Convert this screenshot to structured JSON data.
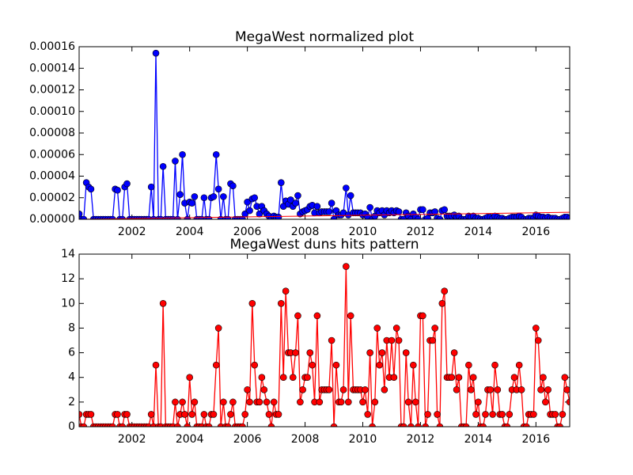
{
  "chart_data": [
    {
      "type": "line",
      "title": "MegaWest normalized plot",
      "color": "#0000ff",
      "x": [
        2000.17,
        2000.25,
        2000.33,
        2000.42,
        2000.5,
        2000.58,
        2000.67,
        2000.75,
        2000.83,
        2000.92,
        2001,
        2001.08,
        2001.17,
        2001.25,
        2001.33,
        2001.42,
        2001.5,
        2001.58,
        2001.67,
        2001.75,
        2001.83,
        2001.92,
        2002,
        2002.08,
        2002.17,
        2002.25,
        2002.33,
        2002.42,
        2002.5,
        2002.58,
        2002.67,
        2002.75,
        2002.83,
        2002.92,
        2003,
        2003.08,
        2003.17,
        2003.25,
        2003.33,
        2003.42,
        2003.5,
        2003.58,
        2003.67,
        2003.75,
        2003.83,
        2003.92,
        2004,
        2004.08,
        2004.17,
        2004.25,
        2004.33,
        2004.42,
        2004.5,
        2004.58,
        2004.67,
        2004.75,
        2004.83,
        2004.92,
        2005,
        2005.08,
        2005.17,
        2005.25,
        2005.33,
        2005.42,
        2005.5,
        2005.58,
        2005.67,
        2005.75,
        2005.83,
        2005.92,
        2006,
        2006.08,
        2006.17,
        2006.25,
        2006.33,
        2006.42,
        2006.5,
        2006.58,
        2006.67,
        2006.75,
        2006.83,
        2006.92,
        2007,
        2007.08,
        2007.17,
        2007.25,
        2007.33,
        2007.42,
        2007.5,
        2007.58,
        2007.67,
        2007.75,
        2007.83,
        2007.92,
        2008,
        2008.08,
        2008.17,
        2008.25,
        2008.33,
        2008.42,
        2008.5,
        2008.58,
        2008.67,
        2008.75,
        2008.83,
        2008.92,
        2009,
        2009.08,
        2009.17,
        2009.25,
        2009.33,
        2009.42,
        2009.5,
        2009.58,
        2009.67,
        2009.75,
        2009.83,
        2009.92,
        2010,
        2010.08,
        2010.17,
        2010.25,
        2010.33,
        2010.42,
        2010.5,
        2010.58,
        2010.67,
        2010.75,
        2010.83,
        2010.92,
        2011,
        2011.08,
        2011.17,
        2011.25,
        2011.33,
        2011.42,
        2011.5,
        2011.58,
        2011.67,
        2011.75,
        2011.83,
        2011.92,
        2012,
        2012.08,
        2012.17,
        2012.25,
        2012.33,
        2012.42,
        2012.5,
        2012.58,
        2012.67,
        2012.75,
        2012.83,
        2012.92,
        2013,
        2013.08,
        2013.17,
        2013.25,
        2013.33,
        2013.42,
        2013.5,
        2013.58,
        2013.67,
        2013.75,
        2013.83,
        2013.92,
        2014,
        2014.08,
        2014.17,
        2014.25,
        2014.33,
        2014.42,
        2014.5,
        2014.58,
        2014.67,
        2014.75,
        2014.83,
        2014.92,
        2015,
        2015.08,
        2015.17,
        2015.25,
        2015.33,
        2015.42,
        2015.5,
        2015.58,
        2015.67,
        2015.75,
        2015.83,
        2015.92,
        2016,
        2016.08,
        2016.17,
        2016.25,
        2016.33,
        2016.42,
        2016.5,
        2016.58,
        2016.67,
        2016.75,
        2016.83,
        2016.92,
        2017,
        2017.08,
        2017.17
      ],
      "values": [
        5e-06,
        0,
        0,
        3.4e-05,
        3e-05,
        2.8e-05,
        0,
        0,
        0,
        0,
        0,
        0,
        0,
        0,
        0,
        2.8e-05,
        2.7e-05,
        0,
        0,
        3e-05,
        3.3e-05,
        0,
        0,
        0,
        0,
        0,
        0,
        0,
        0,
        0,
        3e-05,
        0,
        0.000154,
        0,
        0,
        4.9e-05,
        0,
        0,
        0,
        0,
        5.4e-05,
        0,
        2.3e-05,
        6e-05,
        1.5e-05,
        0,
        1.6e-05,
        1.5e-05,
        2.1e-05,
        0,
        0,
        0,
        2e-05,
        0,
        0,
        2e-05,
        2.1e-05,
        6e-05,
        2.8e-05,
        0,
        2.1e-05,
        0,
        0,
        3.3e-05,
        3.1e-05,
        0,
        0,
        0,
        0,
        5e-06,
        1.6e-05,
        8e-06,
        1.9e-05,
        2e-05,
        1.2e-05,
        5e-06,
        1.2e-05,
        8e-06,
        5e-06,
        3e-06,
        0,
        3e-06,
        2e-06,
        2e-06,
        3.4e-05,
        1.2e-05,
        1.7e-05,
        1.4e-05,
        1.8e-05,
        1.2e-05,
        1.5e-05,
        2.2e-05,
        5e-06,
        7e-06,
        8e-06,
        9e-06,
        1.2e-05,
        1.3e-05,
        6e-06,
        1.2e-05,
        6e-06,
        7e-06,
        7e-06,
        7e-06,
        7e-06,
        1.5e-05,
        0,
        8e-06,
        4e-06,
        4e-06,
        6e-06,
        2.9e-05,
        4e-06,
        2.2e-05,
        6e-06,
        6e-06,
        6e-06,
        6e-06,
        4e-06,
        5e-06,
        2e-06,
        1.1e-05,
        0,
        3e-06,
        8e-06,
        6e-06,
        8e-06,
        4e-06,
        8e-06,
        6e-06,
        8e-06,
        6e-06,
        8e-06,
        7e-06,
        0,
        0,
        6e-06,
        3e-06,
        0,
        5e-06,
        2e-06,
        0,
        9e-06,
        9e-06,
        0,
        1e-06,
        6e-06,
        6e-06,
        7e-06,
        1e-06,
        0,
        8e-06,
        9e-06,
        3e-06,
        3e-06,
        3e-06,
        4e-06,
        2e-06,
        3e-06,
        0,
        0,
        0,
        3e-06,
        2e-06,
        3e-06,
        1e-06,
        1e-06,
        0,
        0,
        1e-06,
        2e-06,
        2e-06,
        1e-06,
        3e-06,
        2e-06,
        1e-06,
        1e-06,
        0,
        0,
        1e-06,
        2e-06,
        2e-06,
        2e-06,
        3e-06,
        2e-06,
        0,
        0,
        1e-06,
        1e-06,
        1e-06,
        4e-06,
        3e-06,
        2e-06,
        2e-06,
        1e-06,
        2e-06,
        1e-06,
        1e-06,
        1e-06,
        0,
        0,
        1e-06,
        2e-06,
        2e-06,
        1e-06
      ],
      "trend": {
        "x": [
          2000.17,
          2017.17
        ],
        "values": [
          0,
          6.5e-06
        ],
        "color": "#ff0000"
      },
      "xlim": [
        2000.17,
        2017.17
      ],
      "xticks": [
        2002,
        2004,
        2006,
        2008,
        2010,
        2012,
        2014,
        2016
      ],
      "ylim": [
        0,
        0.00016
      ],
      "yticks": [
        {
          "value": 0,
          "label": "0.00000"
        },
        {
          "value": 2e-05,
          "label": "0.00002"
        },
        {
          "value": 4e-05,
          "label": "0.00004"
        },
        {
          "value": 6e-05,
          "label": "0.00006"
        },
        {
          "value": 8e-05,
          "label": "0.00008"
        },
        {
          "value": 0.0001,
          "label": "0.00010"
        },
        {
          "value": 0.00012,
          "label": "0.00012"
        },
        {
          "value": 0.00014,
          "label": "0.00014"
        },
        {
          "value": 0.00016,
          "label": "0.00016"
        }
      ]
    },
    {
      "type": "line",
      "title": "MegaWest duns hits pattern",
      "color": "#ff0000",
      "x": [
        2000.17,
        2000.25,
        2000.33,
        2000.42,
        2000.5,
        2000.58,
        2000.67,
        2000.75,
        2000.83,
        2000.92,
        2001,
        2001.08,
        2001.17,
        2001.25,
        2001.33,
        2001.42,
        2001.5,
        2001.58,
        2001.67,
        2001.75,
        2001.83,
        2001.92,
        2002,
        2002.08,
        2002.17,
        2002.25,
        2002.33,
        2002.42,
        2002.5,
        2002.58,
        2002.67,
        2002.75,
        2002.83,
        2002.92,
        2003,
        2003.08,
        2003.17,
        2003.25,
        2003.33,
        2003.42,
        2003.5,
        2003.58,
        2003.67,
        2003.75,
        2003.83,
        2003.92,
        2004,
        2004.08,
        2004.17,
        2004.25,
        2004.33,
        2004.42,
        2004.5,
        2004.58,
        2004.67,
        2004.75,
        2004.83,
        2004.92,
        2005,
        2005.08,
        2005.17,
        2005.25,
        2005.33,
        2005.42,
        2005.5,
        2005.58,
        2005.67,
        2005.75,
        2005.83,
        2005.92,
        2006,
        2006.08,
        2006.17,
        2006.25,
        2006.33,
        2006.42,
        2006.5,
        2006.58,
        2006.67,
        2006.75,
        2006.83,
        2006.92,
        2007,
        2007.08,
        2007.17,
        2007.25,
        2007.33,
        2007.42,
        2007.5,
        2007.58,
        2007.67,
        2007.75,
        2007.83,
        2007.92,
        2008,
        2008.08,
        2008.17,
        2008.25,
        2008.33,
        2008.42,
        2008.5,
        2008.58,
        2008.67,
        2008.75,
        2008.83,
        2008.92,
        2009,
        2009.08,
        2009.17,
        2009.25,
        2009.33,
        2009.42,
        2009.5,
        2009.58,
        2009.67,
        2009.75,
        2009.83,
        2009.92,
        2010,
        2010.08,
        2010.17,
        2010.25,
        2010.33,
        2010.42,
        2010.5,
        2010.58,
        2010.67,
        2010.75,
        2010.83,
        2010.92,
        2011,
        2011.08,
        2011.17,
        2011.25,
        2011.33,
        2011.42,
        2011.5,
        2011.58,
        2011.67,
        2011.75,
        2011.83,
        2011.92,
        2012,
        2012.08,
        2012.17,
        2012.25,
        2012.33,
        2012.42,
        2012.5,
        2012.58,
        2012.67,
        2012.75,
        2012.83,
        2012.92,
        2013,
        2013.08,
        2013.17,
        2013.25,
        2013.33,
        2013.42,
        2013.5,
        2013.58,
        2013.67,
        2013.75,
        2013.83,
        2013.92,
        2014,
        2014.08,
        2014.17,
        2014.25,
        2014.33,
        2014.42,
        2014.5,
        2014.58,
        2014.67,
        2014.75,
        2014.83,
        2014.92,
        2015,
        2015.08,
        2015.17,
        2015.25,
        2015.33,
        2015.42,
        2015.5,
        2015.58,
        2015.67,
        2015.75,
        2015.83,
        2015.92,
        2016,
        2016.08,
        2016.17,
        2016.25,
        2016.33,
        2016.42,
        2016.5,
        2016.58,
        2016.67,
        2016.75,
        2016.83,
        2016.92,
        2017,
        2017.08,
        2017.17
      ],
      "values": [
        1,
        0,
        0,
        1,
        1,
        1,
        0,
        0,
        0,
        0,
        0,
        0,
        0,
        0,
        0,
        1,
        1,
        0,
        0,
        1,
        1,
        0,
        0,
        0,
        0,
        0,
        0,
        0,
        0,
        0,
        1,
        0,
        5,
        0,
        0,
        10,
        0,
        0,
        0,
        0,
        2,
        0,
        1,
        2,
        1,
        0,
        4,
        1,
        2,
        0,
        0,
        0,
        1,
        0,
        0,
        1,
        1,
        5,
        8,
        0,
        2,
        0,
        0,
        1,
        2,
        0,
        0,
        0,
        0,
        1,
        3,
        2,
        10,
        5,
        2,
        2,
        4,
        3,
        2,
        1,
        0,
        2,
        1,
        1,
        10,
        4,
        11,
        6,
        6,
        4,
        6,
        9,
        2,
        3,
        4,
        4,
        6,
        5,
        2,
        9,
        2,
        3,
        3,
        3,
        3,
        7,
        0,
        5,
        2,
        2,
        3,
        13,
        2,
        9,
        3,
        3,
        3,
        3,
        2,
        3,
        1,
        6,
        0,
        2,
        8,
        5,
        6,
        3,
        7,
        4,
        7,
        4,
        8,
        7,
        0,
        0,
        6,
        2,
        0,
        5,
        2,
        0,
        9,
        9,
        0,
        1,
        7,
        7,
        8,
        1,
        0,
        10,
        11,
        4,
        4,
        4,
        6,
        3,
        4,
        0,
        0,
        0,
        5,
        3,
        4,
        1,
        2,
        0,
        0,
        1,
        3,
        3,
        1,
        5,
        3,
        1,
        1,
        0,
        0,
        1,
        3,
        4,
        3,
        5,
        3,
        0,
        0,
        1,
        1,
        1,
        8,
        7,
        3,
        4,
        2,
        3,
        1,
        1,
        1,
        0,
        0,
        1,
        4,
        3,
        2
      ],
      "xlim": [
        2000.17,
        2017.17
      ],
      "xticks": [
        2002,
        2004,
        2006,
        2008,
        2010,
        2012,
        2014,
        2016
      ],
      "ylim": [
        0,
        14
      ],
      "yticks": [
        0,
        2,
        4,
        6,
        8,
        10,
        12,
        14
      ]
    }
  ]
}
